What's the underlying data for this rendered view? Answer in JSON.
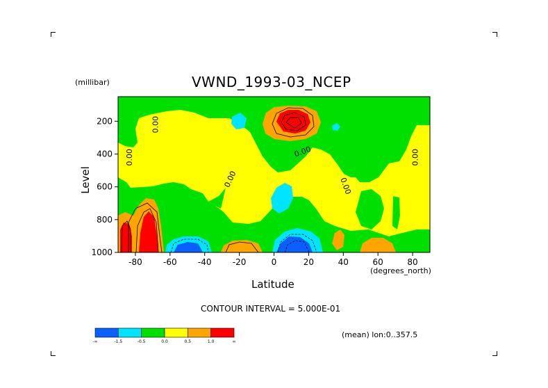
{
  "chart_data": {
    "type": "contour",
    "title": "VWND_1993-03_NCEP",
    "xlabel": "Latitude",
    "x_unit": "(degrees_north)",
    "ylabel": "Level",
    "y_unit": "(millibar)",
    "xlim": [
      -90,
      90
    ],
    "ylim": [
      1000,
      50
    ],
    "x_ticks": [
      -80,
      -60,
      -40,
      -20,
      0,
      20,
      40,
      60,
      80
    ],
    "x_tick_labels": [
      "-80",
      "-60",
      "-40",
      "-20",
      "0",
      "20",
      "40",
      "60",
      "80"
    ],
    "y_ticks": [
      200,
      400,
      600,
      800,
      1000
    ],
    "y_tick_labels": [
      "200",
      "400",
      "600",
      "800",
      "1000"
    ],
    "contour_interval_text": "CONTOUR INTERVAL = 5.000E-01",
    "contour_labels": [
      "0.00",
      "0.00",
      "0.00",
      "0.00",
      "0.00",
      "0.00"
    ],
    "mean_info": "(mean) lon:0..357.5",
    "colorbar": {
      "levels": [
        "-∞",
        "-1.5",
        "-0.5",
        "0.0",
        "0.5",
        "1.0",
        "∞"
      ],
      "colors": [
        "#0a60ff",
        "#00e5ff",
        "#00e000",
        "#ffff00",
        "#ffa500",
        "#ff0000"
      ]
    },
    "features": [
      {
        "name": "max",
        "lat": 10,
        "level": 150,
        "value": 3.0
      },
      {
        "name": "min",
        "lat": 10,
        "level": 960,
        "value": -2.0
      },
      {
        "name": "min",
        "lat": -58,
        "level": 970,
        "value": -1.5
      },
      {
        "name": "min",
        "lat": 5,
        "level": 680,
        "value": -1.0
      },
      {
        "name": "min",
        "lat": -20,
        "level": 110,
        "value": -0.8
      },
      {
        "name": "min",
        "lat": 37,
        "level": 200,
        "value": -0.6
      },
      {
        "name": "max",
        "lat": -87,
        "level": 920,
        "value": 2.0
      },
      {
        "name": "max",
        "lat": -72,
        "level": 890,
        "value": 3.0
      },
      {
        "name": "max",
        "lat": -22,
        "level": 980,
        "value": 1.0
      },
      {
        "name": "max",
        "lat": 62,
        "level": 980,
        "value": 1.0
      },
      {
        "name": "max",
        "lat": 37,
        "level": 950,
        "value": 0.7
      }
    ]
  }
}
